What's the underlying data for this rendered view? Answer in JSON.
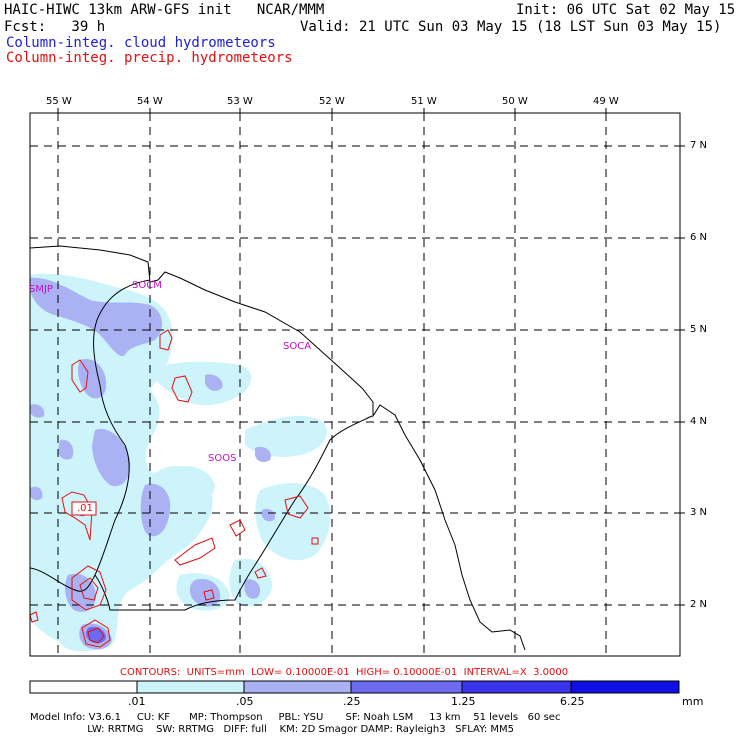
{
  "header": {
    "title_line1": "HAIC-HIWC 13km ARW-GFS init   NCAR/MMM",
    "init_line": "Init: 06 UTC Sat 02 May 15",
    "fcst_line": "Fcst:   39 h",
    "valid_line": "Valid: 21 UTC Sun 03 May 15 (18 LST Sun 03 May 15)",
    "field_blue": "Column-integ. cloud hydrometeors",
    "field_red": "Column-integ. precip. hydrometeors",
    "field_blue_color": "#1f1fd6",
    "field_red_color": "#e01010"
  },
  "map": {
    "lon_labels": [
      "55 W",
      "54 W",
      "53 W",
      "52 W",
      "51 W",
      "50 W",
      "49 W"
    ],
    "lat_labels": [
      "7 N",
      "6 N",
      "5 N",
      "4 N",
      "3 N",
      "2 N"
    ],
    "stations": [
      "SMJP",
      "SOCM",
      "SOCA",
      "SOOS"
    ],
    "contour_label": ".01",
    "colors": {
      "coast": "#000000",
      "grid": "#000000",
      "contour": "#e01010"
    }
  },
  "contours_line": "CONTOURS:  UNITS=mm  LOW= 0.10000E-01  HIGH= 0.10000E-01  INTERVAL=X  3.0000",
  "legend": {
    "labels": [
      ".01",
      ".05",
      ".25",
      "1.25",
      "6.25"
    ],
    "units": "mm",
    "colors": [
      "#ffffff",
      "#ccf4fa",
      "#aab2f4",
      "#6d6bf0",
      "#3a34ec",
      "#1010e6"
    ]
  },
  "footer": {
    "line1": "Model Info: V3.6.1     CU: KF      MP: Thompson     PBL: YSU       SF: Noah LSM     13 km    51 levels   60 sec",
    "line2": "                  LW: RRTMG    SW: RRTMG   DIFF: full    KM: 2D Smagor DAMP: Rayleigh3   SFLAY: MM5"
  }
}
